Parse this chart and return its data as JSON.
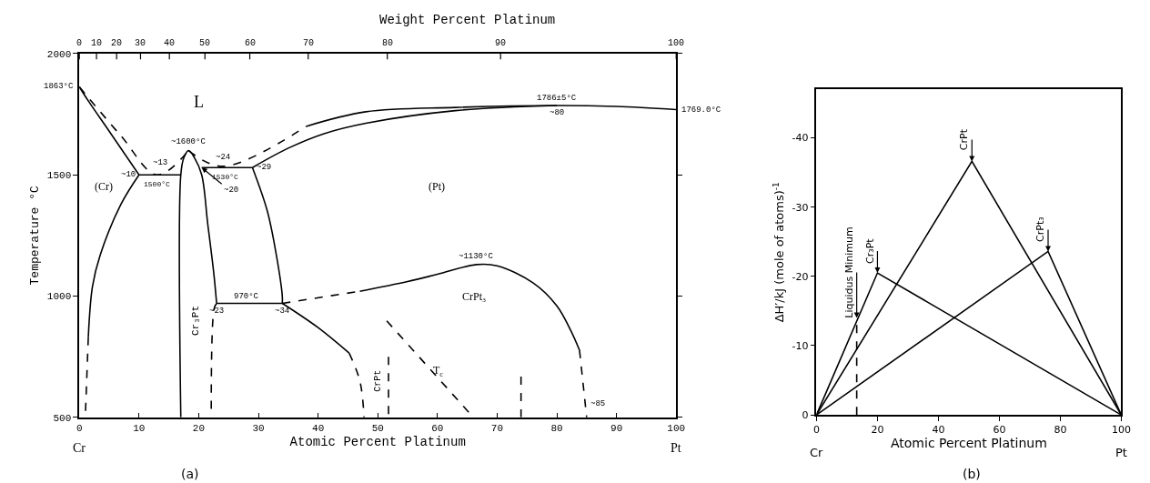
{
  "chart_data": [
    {
      "type": "line",
      "xlabel": "Atomic Percent Platinum",
      "ylabel": "Temperature °C",
      "x2label": "Weight Percent Platinum",
      "xlim": [
        0,
        100
      ],
      "ylim": [
        500,
        2000
      ],
      "xticks": [
        0,
        10,
        20,
        30,
        40,
        50,
        60,
        70,
        80,
        90,
        100
      ],
      "yticks": [
        500,
        1000,
        1500,
        2000
      ],
      "series": [
        {
          "color": "#000000",
          "line_style": "solid",
          "x": [
            0,
            1.5,
            5,
            10
          ],
          "values": [
            1863,
            1805,
            1680,
            1500
          ]
        },
        {
          "color": "#000000",
          "line_style": "dashed",
          "x": [
            0,
            7,
            13,
            18.3
          ],
          "values": [
            1863,
            1660,
            1500,
            1600
          ]
        },
        {
          "color": "#000000",
          "line_style": "solid",
          "x": [
            10,
            17
          ],
          "values": [
            1500,
            1500
          ]
        },
        {
          "color": "#000000",
          "line_style": "solid",
          "x": [
            17,
            17,
            17.5,
            18.3,
            19.3,
            20.5,
            21.5,
            22.5,
            23
          ],
          "values": [
            500,
            1500,
            1570,
            1600,
            1570,
            1500,
            1300,
            1100,
            970
          ]
        },
        {
          "color": "#000000",
          "line_style": "dashed",
          "x": [
            18.3,
            24,
            38
          ],
          "values": [
            1600,
            1535,
            1700
          ]
        },
        {
          "color": "#000000",
          "line_style": "solid",
          "x": [
            38,
            48,
            63,
            80,
            90,
            100
          ],
          "values": [
            1700,
            1760,
            1778,
            1786,
            1782,
            1769
          ]
        },
        {
          "color": "#000000",
          "line_style": "solid",
          "x": [
            29,
            35,
            41,
            48,
            63,
            80
          ],
          "values": [
            1530,
            1610,
            1670,
            1713,
            1765,
            1786
          ]
        },
        {
          "color": "#000000",
          "line_style": "solid",
          "x": [
            20.5,
            29
          ],
          "values": [
            1530,
            1530
          ]
        },
        {
          "color": "#000000",
          "line_style": "solid",
          "x": [
            29,
            31.5,
            33,
            34,
            34
          ],
          "values": [
            1530,
            1350,
            1170,
            1000,
            970
          ]
        },
        {
          "color": "#000000",
          "line_style": "solid",
          "x": [
            10,
            7,
            3.5,
            2.2,
            1.5
          ],
          "values": [
            1500,
            1380,
            1170,
            1040,
            830
          ]
        },
        {
          "color": "#000000",
          "line_style": "dashed",
          "x": [
            1.5,
            1
          ],
          "values": [
            830,
            500
          ]
        },
        {
          "color": "#000000",
          "line_style": "solid",
          "x": [
            23,
            34
          ],
          "values": [
            970,
            970
          ]
        },
        {
          "color": "#000000",
          "line_style": "dashed",
          "x": [
            23,
            22.6,
            22.1
          ],
          "values": [
            970,
            950,
            500
          ]
        },
        {
          "color": "#000000",
          "line_style": "solid",
          "x": [
            34,
            40,
            45.2
          ],
          "values": [
            970,
            870,
            765
          ]
        },
        {
          "color": "#000000",
          "line_style": "dashed",
          "x": [
            45.2,
            47,
            47.7
          ],
          "values": [
            765,
            650,
            500
          ]
        },
        {
          "color": "#000000",
          "line_style": "dashed",
          "x": [
            51.8,
            51.8
          ],
          "values": [
            750,
            500
          ]
        },
        {
          "color": "#000000",
          "line_style": "dashed",
          "x": [
            34,
            47
          ],
          "values": [
            970,
            1020
          ]
        },
        {
          "color": "#000000",
          "line_style": "solid",
          "x": [
            47,
            55,
            60,
            66.5,
            70,
            76,
            80,
            82.3,
            83.8
          ],
          "values": [
            1020,
            1060,
            1090,
            1130,
            1125,
            1055,
            960,
            860,
            777
          ]
        },
        {
          "color": "#000000",
          "line_style": "dashed",
          "x": [
            83.8,
            85
          ],
          "values": [
            777,
            500
          ]
        },
        {
          "color": "#000000",
          "line_style": "dashed",
          "x": [
            51.5,
            66
          ],
          "values": [
            898,
            500
          ]
        },
        {
          "color": "#000000",
          "line_style": "dashed",
          "x": [
            74,
            74
          ],
          "values": [
            668,
            500
          ]
        }
      ],
      "annotations": [
        {
          "text": "1863°C",
          "x": 0,
          "y": 1863
        },
        {
          "text": "~1600°C",
          "x": 18.3,
          "y": 1600
        },
        {
          "text": "~13",
          "x": 13,
          "y": 1500
        },
        {
          "text": "~10",
          "x": 10,
          "y": 1500
        },
        {
          "text": "1500°C",
          "x": 13,
          "y": 1500
        },
        {
          "text": "~24",
          "x": 24,
          "y": 1535
        },
        {
          "text": "1530°C",
          "x": 24.5,
          "y": 1530
        },
        {
          "text": "~29",
          "x": 29,
          "y": 1530
        },
        {
          "text": "~20",
          "x": 20.5,
          "y": 1530
        },
        {
          "text": "1786±5°C",
          "x": 80,
          "y": 1786
        },
        {
          "text": "~80",
          "x": 80,
          "y": 1786
        },
        {
          "text": "1769.0°C",
          "x": 100,
          "y": 1769
        },
        {
          "text": "970°C",
          "x": 28,
          "y": 970
        },
        {
          "text": "~23",
          "x": 23,
          "y": 970
        },
        {
          "text": "~34",
          "x": 34,
          "y": 970
        },
        {
          "text": "~1130°C",
          "x": 66.5,
          "y": 1130
        },
        {
          "text": "T$_{c}$",
          "x": 59,
          "y": 690
        },
        {
          "text": "~85",
          "x": 85,
          "y": 530
        },
        "L",
        "(Cr)",
        "(Pt)",
        "Cr₃Pt",
        "CrPt₃",
        "CrPt",
        "Cr",
        "Pt",
        "(a)",
        "0",
        "10",
        "20",
        "30",
        "40",
        "50",
        "60",
        "70",
        "80",
        "90",
        "100"
      ]
    },
    {
      "type": "line",
      "xlabel": "Atomic Percent Platinum",
      "ylabel": "ΔH′/kJ (mole of atoms)$^{-1}$",
      "xlim": [
        0,
        100
      ],
      "ylim": [
        0,
        -47
      ],
      "xticks": [
        0,
        20,
        40,
        60,
        80,
        100
      ],
      "yticks": [
        0,
        -10,
        -20,
        -30,
        -40
      ],
      "series": [
        {
          "color": "#000000",
          "line_style": "solid",
          "x": [
            0,
            20,
            100
          ],
          "values": [
            0,
            -20.5,
            0
          ]
        },
        {
          "color": "#000000",
          "line_style": "solid",
          "x": [
            0,
            51,
            100
          ],
          "values": [
            0,
            -36.6,
            0
          ]
        },
        {
          "color": "#000000",
          "line_style": "solid",
          "x": [
            0,
            76,
            100
          ],
          "values": [
            0,
            -23.6,
            0
          ]
        },
        {
          "color": "#000000",
          "line_style": "dashed",
          "x": [
            13.2,
            13.2
          ],
          "values": [
            0,
            -14
          ]
        }
      ],
      "annotations": [
        {
          "text": "Liquidus Minimum",
          "x": 13.2,
          "y": -14
        },
        {
          "text": "Cr₃Pt",
          "x": 20,
          "y": -20.5
        },
        {
          "text": "CrPt",
          "x": 51,
          "y": -36.6
        },
        {
          "text": "CrPt₃",
          "x": 76,
          "y": -23.6
        },
        "Cr",
        "Pt",
        "(b)"
      ]
    }
  ]
}
